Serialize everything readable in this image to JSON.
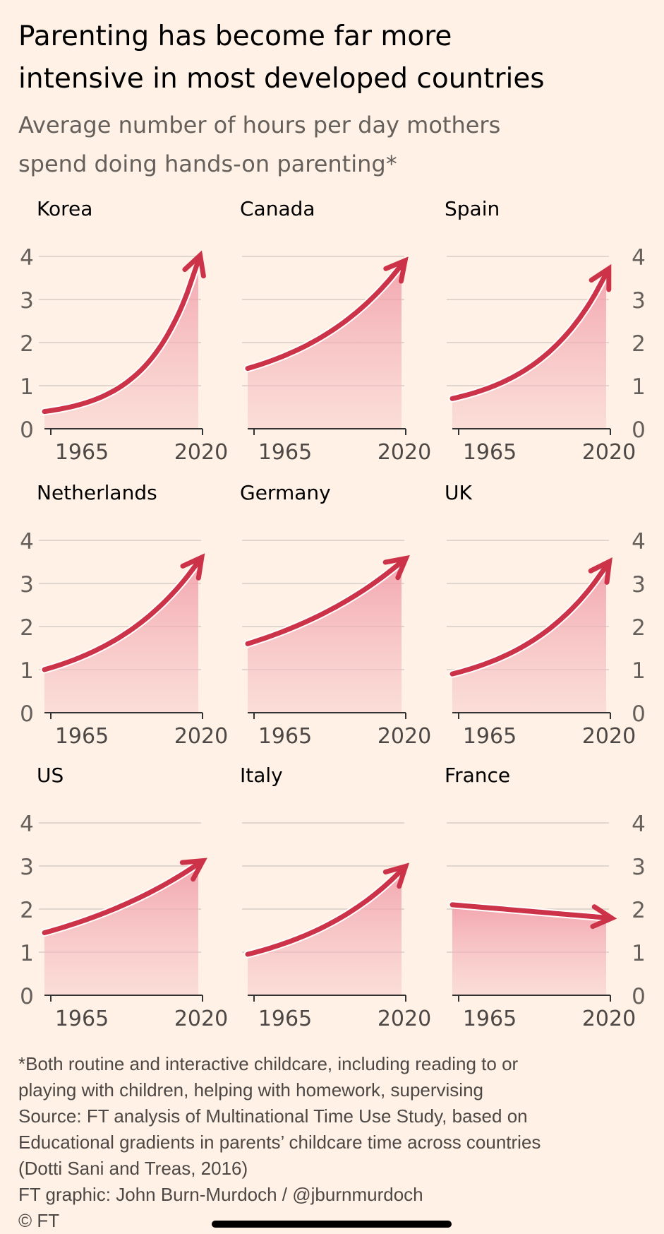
{
  "title_lines": [
    "Parenting has become far more",
    "intensive in most developed countries"
  ],
  "subtitle_lines": [
    "Average number of hours per day mothers",
    "spend doing hands-on parenting*"
  ],
  "notes": [
    "*Both routine and interactive childcare, including reading to or",
    "playing with children, helping with homework, supervising",
    "Source: FT analysis of Multinational Time Use Study, based on",
    "Educational gradients in parents’ childcare time across countries",
    "(Dotti Sani and Treas, 2016)",
    "FT graphic: John Burn-Murdoch / @jburnmurdoch",
    "© FT"
  ],
  "colors": {
    "background": "#fff1e5",
    "line": "#cc3349",
    "fill": "#f2a3ad",
    "grid": "#e0d6cd"
  },
  "chart_data": {
    "type": "area",
    "layout": "small-multiples 3x3",
    "ylabel": "Hours per day",
    "ylim": [
      0,
      4
    ],
    "yticks": [
      "0",
      "1",
      "2",
      "3",
      "4"
    ],
    "xticks": [
      "1965",
      "2020"
    ],
    "xlim": [
      1965,
      2020
    ],
    "grid": true,
    "series": [
      {
        "name": "Korea",
        "start": 0.4,
        "end": 3.9,
        "curve": 3.2
      },
      {
        "name": "Canada",
        "start": 1.4,
        "end": 3.8,
        "curve": 1.5
      },
      {
        "name": "Spain",
        "start": 0.7,
        "end": 3.6,
        "curve": 2.2
      },
      {
        "name": "Netherlands",
        "start": 1.0,
        "end": 3.5,
        "curve": 1.6
      },
      {
        "name": "Germany",
        "start": 1.6,
        "end": 3.5,
        "curve": 1.0
      },
      {
        "name": "UK",
        "start": 0.9,
        "end": 3.4,
        "curve": 1.8
      },
      {
        "name": "US",
        "start": 1.45,
        "end": 3.05,
        "curve": 0.9
      },
      {
        "name": "Italy",
        "start": 0.95,
        "end": 2.9,
        "curve": 1.4
      },
      {
        "name": "France",
        "start": 2.1,
        "end": 1.8,
        "curve": 0.0
      }
    ]
  }
}
